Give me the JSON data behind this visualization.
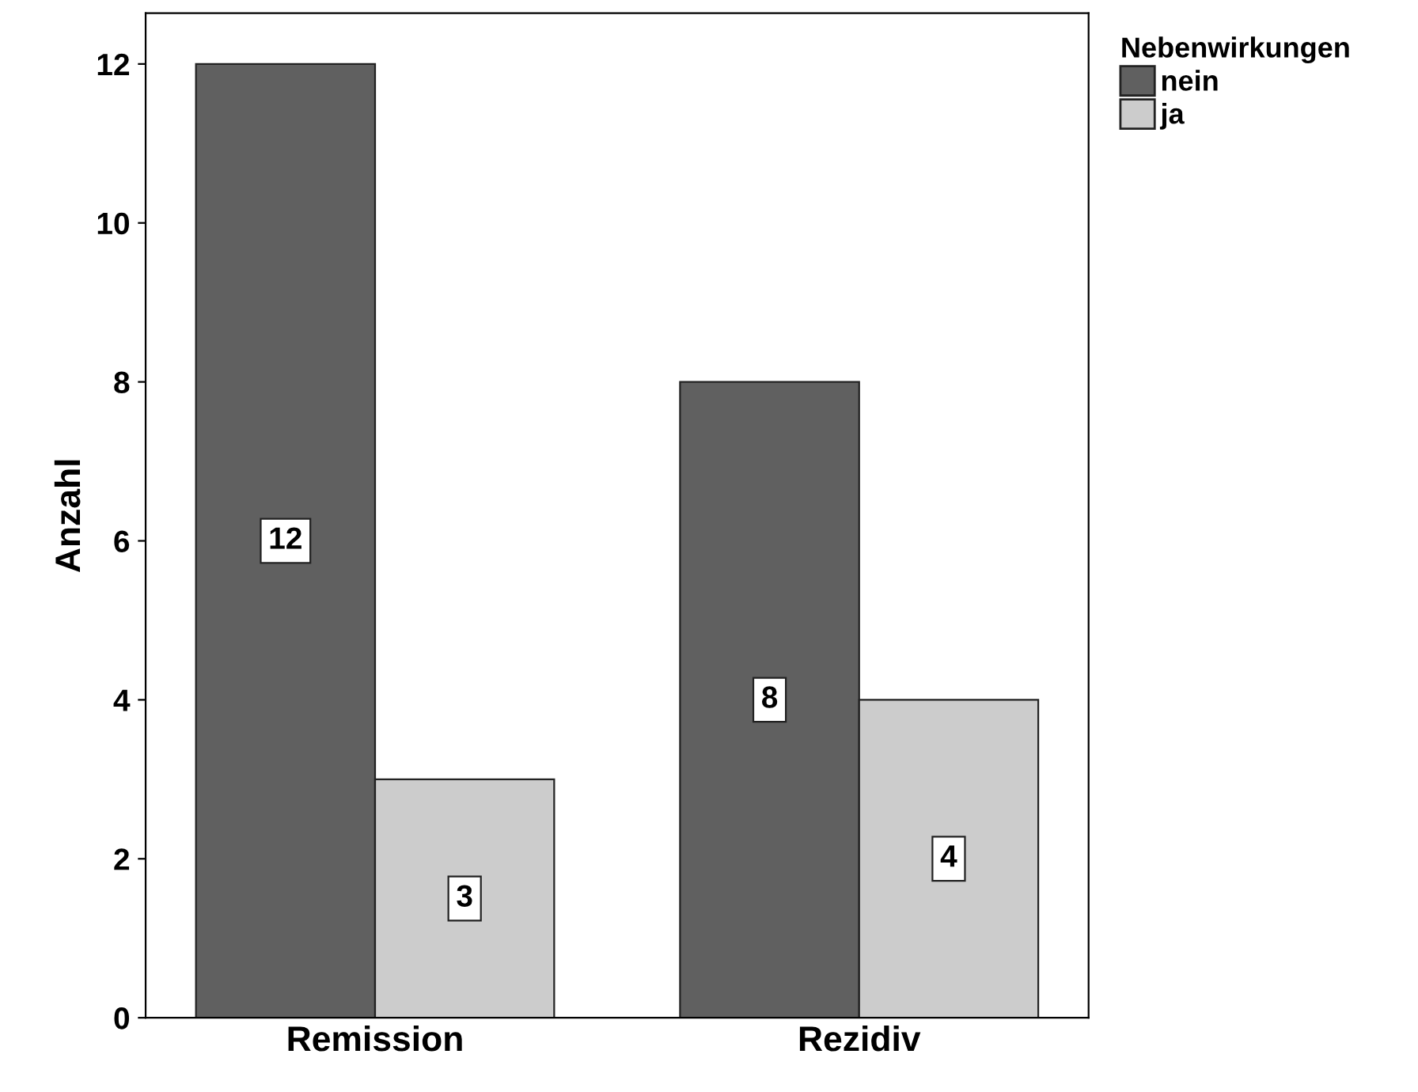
{
  "chart_data": {
    "type": "bar",
    "ylabel": "Anzahl",
    "legend_title": "Nebenwirkungen",
    "categories": [
      "Remission",
      "Rezidiv"
    ],
    "series": [
      {
        "name": "nein",
        "color": "#606060",
        "values": [
          12,
          8
        ]
      },
      {
        "name": "ja",
        "color": "#cccccc",
        "values": [
          3,
          4
        ]
      }
    ],
    "ylim": [
      0,
      12.64
    ],
    "yticks": [
      0,
      2,
      4,
      6,
      8,
      10,
      12
    ],
    "grid": false,
    "legend": "top right",
    "data_labels": true
  }
}
